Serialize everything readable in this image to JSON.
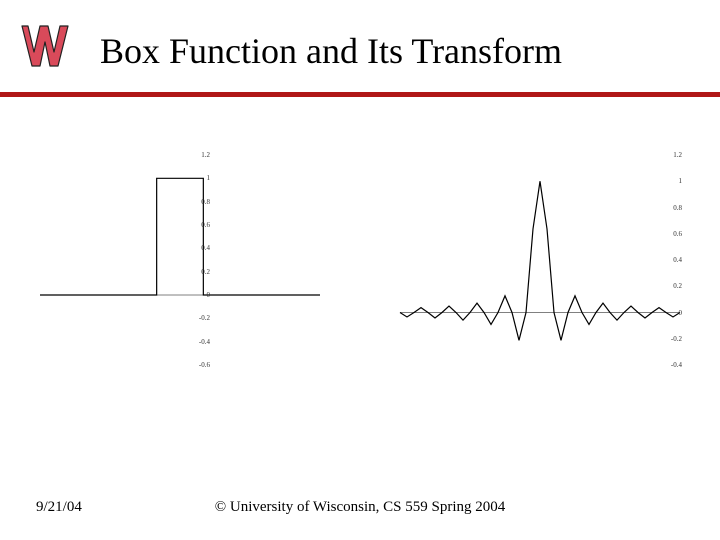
{
  "title": "Box Function and Its Transform",
  "footer": {
    "date": "9/21/04",
    "copyright": "© University of Wisconsin, CS 559 Spring 2004"
  },
  "logo": {
    "letter": "W",
    "fill": "#d94a5a",
    "outline": "#222222"
  },
  "rule_color": "#b01717",
  "box_chart": {
    "type": "line",
    "stroke": "#000000",
    "stroke_width": 1.2,
    "xlim": [
      -3,
      3
    ],
    "ylim": [
      -0.6,
      1.2
    ],
    "ytick_step": 0.2,
    "yticks": [
      1.2,
      1.0,
      0.8,
      0.6,
      0.4,
      0.2,
      0.0,
      -0.2,
      -0.4,
      -0.6
    ],
    "background_color": "#ffffff",
    "series_x": [
      -3,
      -0.5001,
      -0.5,
      0.5,
      0.5001,
      3
    ],
    "series_y": [
      0,
      0,
      1,
      1,
      0,
      0
    ]
  },
  "sinc_chart": {
    "type": "line",
    "stroke": "#000000",
    "stroke_width": 1.2,
    "xlim": [
      -10,
      10
    ],
    "ylim": [
      -0.4,
      1.2
    ],
    "ytick_step": 0.2,
    "yticks": [
      1.2,
      1.0,
      0.8,
      0.6,
      0.4,
      0.2,
      0.0,
      -0.2,
      -0.4
    ],
    "background_color": "#ffffff",
    "series_x": [
      -10,
      -9.5,
      -9,
      -8.5,
      -8,
      -7.5,
      -7,
      -6.5,
      -6,
      -5.5,
      -5,
      -4.5,
      -4,
      -3.5,
      -3,
      -2.5,
      -2,
      -1.5,
      -1,
      -0.5,
      0,
      0.5,
      1,
      1.5,
      2,
      2.5,
      3,
      3.5,
      4,
      4.5,
      5,
      5.5,
      6,
      6.5,
      7,
      7.5,
      8,
      8.5,
      9,
      9.5,
      10
    ],
    "series_y": [
      0,
      -0.034,
      0,
      0.037,
      0,
      -0.042,
      0,
      0.049,
      0,
      -0.058,
      0,
      0.071,
      0,
      -0.091,
      0,
      0.127,
      0,
      -0.212,
      0,
      0.637,
      1,
      0.637,
      0,
      -0.212,
      0,
      0.127,
      0,
      -0.091,
      0,
      0.071,
      0,
      -0.058,
      0,
      0.049,
      0,
      -0.042,
      0,
      0.037,
      0,
      -0.034,
      0
    ]
  }
}
